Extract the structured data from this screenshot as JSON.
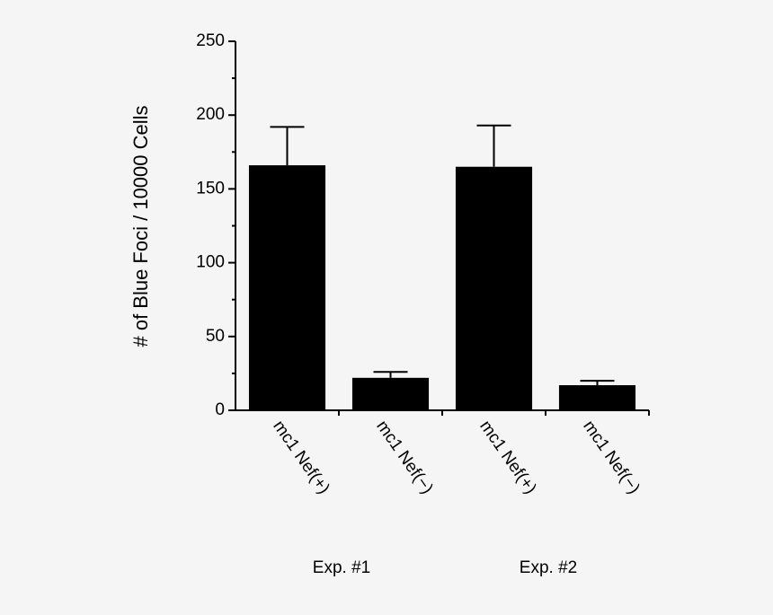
{
  "chart_data": {
    "type": "bar",
    "y_label": "# of Blue Foci / 10000 Cells",
    "categories": [
      "mc1 Nef(+)",
      "mc1 Nef(−)",
      "mc1 Nef(+)",
      "mc1 Nef(−)"
    ],
    "values": [
      166,
      22,
      165,
      17
    ],
    "errors": [
      26,
      4,
      28,
      3
    ],
    "groups": [
      "Exp. #1",
      "Exp. #2"
    ],
    "color": "#000000",
    "ylim": [
      0,
      250
    ],
    "yticks": [
      0,
      50,
      100,
      150,
      200,
      250
    ]
  }
}
